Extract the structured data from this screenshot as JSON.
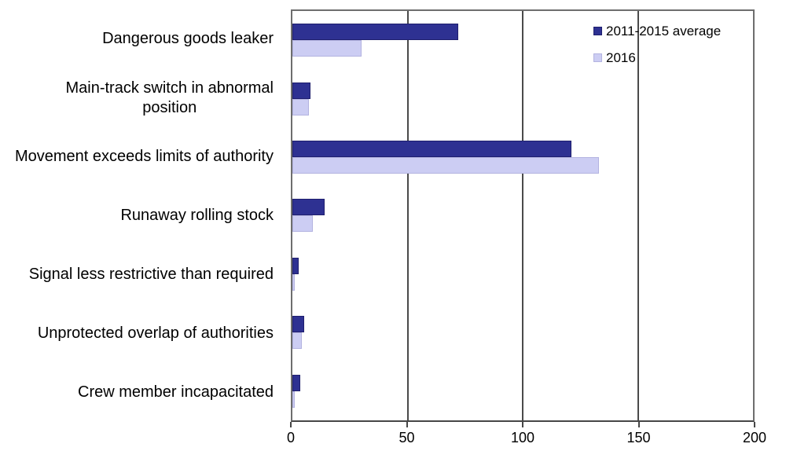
{
  "chart_data": {
    "type": "bar",
    "orientation": "horizontal",
    "categories": [
      "Dangerous goods leaker",
      "Main-track switch in abnormal\nposition",
      "Movement exceeds limits of authority",
      "Runaway rolling stock",
      "Signal less restrictive than required",
      "Unprotected overlap of authorities",
      "Crew member incapacitated"
    ],
    "series": [
      {
        "name": "2011-2015 average",
        "color": "#2E3192",
        "border_color": "#1F1F6E",
        "values": [
          72,
          8,
          121,
          14,
          2.6,
          5,
          3.4
        ]
      },
      {
        "name": "2016",
        "color": "#CCCDF3",
        "border_color": "#B3B3E0",
        "values": [
          30,
          7,
          133,
          9,
          1,
          4,
          1
        ]
      }
    ],
    "xlim": [
      0,
      200
    ],
    "x_ticks": [
      0,
      50,
      100,
      150,
      200
    ],
    "grid": true,
    "gridline_color": "#4a4a4a",
    "legend_position": "top-right-inside"
  }
}
